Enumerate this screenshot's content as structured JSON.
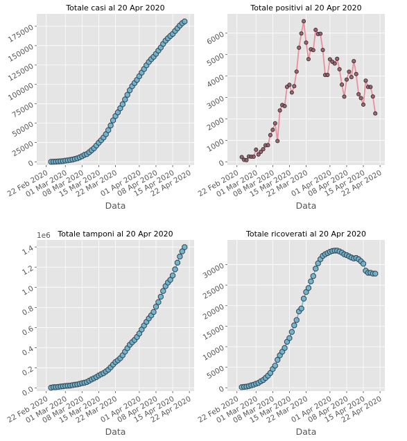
{
  "chart_data": [
    {
      "type": "scatter",
      "title": "Totale casi al 20 Apr 2020",
      "xlabel": "Data",
      "ylabel": "",
      "x_ticks": [
        "22 Feb 2020",
        "01 Mar 2020",
        "08 Mar 2020",
        "15 Mar 2020",
        "22 Mar 2020",
        "01 Apr 2020",
        "08 Apr 2020",
        "15 Apr 2020",
        "22 Apr 2020"
      ],
      "y_ticks": [
        "0",
        "25000",
        "50000",
        "75000",
        "100000",
        "125000",
        "150000",
        "175000"
      ],
      "ylim": [
        -4000,
        191000
      ],
      "grid": true,
      "style": {
        "fill": "#6ab4cc",
        "edge": "#3a4a58",
        "line": "#7fbccf",
        "marker": "octagon"
      },
      "x_start": "2020-02-24",
      "values": [
        229,
        322,
        400,
        650,
        888,
        1128,
        1694,
        2036,
        2502,
        3089,
        3858,
        4636,
        5883,
        7375,
        9172,
        10149,
        12462,
        15113,
        17660,
        21157,
        24747,
        27980,
        31506,
        35713,
        41035,
        47021,
        53578,
        59138,
        63927,
        69176,
        74386,
        80539,
        86498,
        92472,
        97689,
        101739,
        105792,
        110574,
        115242,
        119827,
        124632,
        128948,
        132547,
        135586,
        139422,
        143626,
        147577,
        152271,
        156363,
        159516,
        162488,
        165155,
        168941,
        172434,
        175925,
        178972,
        181228
      ]
    },
    {
      "type": "line",
      "title": "Totale positivi al 20 Apr 2020",
      "xlabel": "Data",
      "ylabel": "",
      "x_ticks": [
        "22 Feb 2020",
        "01 Mar 2020",
        "08 Mar 2020",
        "15 Mar 2020",
        "22 Mar 2020",
        "01 Apr 2020",
        "08 Apr 2020",
        "15 Apr 2020",
        "22 Apr 2020"
      ],
      "y_ticks": [
        "0",
        "1000",
        "2000",
        "3000",
        "4000",
        "5000",
        "6000"
      ],
      "ylim": [
        -150,
        6900
      ],
      "grid": true,
      "style": {
        "fill": "#8a5a66",
        "edge": "#3a2a30",
        "line": "#e8909e",
        "marker": "circle"
      },
      "x_start": "2020-02-24",
      "values": [
        221,
        93,
        78,
        250,
        238,
        240,
        566,
        342,
        466,
        587,
        769,
        778,
        1247,
        1492,
        1797,
        970,
        2396,
        2648,
        2599,
        3497,
        3590,
        3233,
        3526,
        4207,
        5322,
        5986,
        6557,
        5560,
        4789,
        5249,
        5210,
        6153,
        5959,
        5974,
        5217,
        4050,
        4053,
        4782,
        4668,
        4585,
        4805,
        4316,
        3599,
        3039,
        3836,
        4204,
        3951,
        4694,
        4092,
        3153,
        2972,
        2667,
        3786,
        3493,
        3491,
        3047,
        2256
      ]
    },
    {
      "type": "scatter",
      "title": "Totale tamponi al 20 Apr 2020",
      "xlabel": "Data",
      "ylabel": "",
      "y_offset_label": "1e6",
      "x_ticks": [
        "22 Feb 2020",
        "01 Mar 2020",
        "08 Mar 2020",
        "15 Mar 2020",
        "22 Mar 2020",
        "01 Apr 2020",
        "08 Apr 2020",
        "15 Apr 2020",
        "22 Apr 2020"
      ],
      "y_ticks": [
        "0.0",
        "0.2",
        "0.4",
        "0.6",
        "0.8",
        "1.0",
        "1.2",
        "1.4"
      ],
      "ylim": [
        -0.03,
        1.47
      ],
      "grid": true,
      "style": {
        "fill": "#6ab4cc",
        "edge": "#3a4a58",
        "line": "#7fbccf",
        "marker": "octagon"
      },
      "x_start": "2020-02-24",
      "values": [
        0.004,
        0.009,
        0.009,
        0.012,
        0.015,
        0.018,
        0.021,
        0.023,
        0.025,
        0.029,
        0.033,
        0.036,
        0.042,
        0.049,
        0.053,
        0.06,
        0.073,
        0.086,
        0.097,
        0.109,
        0.124,
        0.137,
        0.148,
        0.165,
        0.182,
        0.206,
        0.233,
        0.258,
        0.275,
        0.296,
        0.325,
        0.361,
        0.395,
        0.43,
        0.455,
        0.477,
        0.506,
        0.541,
        0.581,
        0.62,
        0.657,
        0.691,
        0.721,
        0.755,
        0.807,
        0.853,
        0.906,
        0.963,
        1.011,
        1.047,
        1.074,
        1.117,
        1.178,
        1.244,
        1.305,
        1.356,
        1.398
      ]
    },
    {
      "type": "scatter",
      "title": "Totale ricoverati al 20 Apr 2020",
      "xlabel": "Data",
      "ylabel": "",
      "x_ticks": [
        "22 Feb 2020",
        "01 Mar 2020",
        "08 Mar 2020",
        "15 Mar 2020",
        "22 Mar 2020",
        "01 Apr 2020",
        "08 Apr 2020",
        "15 Apr 2020",
        "22 Apr 2020"
      ],
      "y_ticks": [
        "0",
        "5000",
        "10000",
        "15000",
        "20000",
        "25000",
        "30000"
      ],
      "ylim": [
        -800,
        36000
      ],
      "grid": true,
      "style": {
        "fill": "#6ab4cc",
        "edge": "#3a4a58",
        "line": "#7fbccf",
        "marker": "octagon"
      },
      "x_start": "2020-02-24",
      "values": [
        150,
        220,
        281,
        420,
        600,
        750,
        990,
        1200,
        1580,
        1900,
        2390,
        2950,
        3600,
        4560,
        5400,
        6800,
        7900,
        8800,
        9700,
        11200,
        12100,
        13600,
        15200,
        16500,
        18600,
        19300,
        21700,
        23300,
        24300,
        25900,
        27200,
        29000,
        30300,
        31300,
        32100,
        32500,
        32800,
        33100,
        33300,
        33400,
        33400,
        33200,
        32900,
        32500,
        32300,
        32000,
        31700,
        31500,
        31600,
        31300,
        30800,
        30200,
        28500,
        28000,
        28000,
        27800,
        27800
      ]
    }
  ]
}
